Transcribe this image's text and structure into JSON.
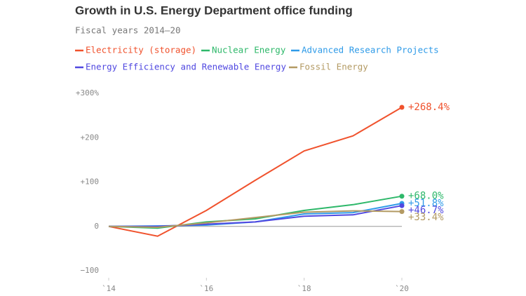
{
  "chart_data": {
    "type": "line",
    "title": "Growth in U.S. Energy Department office funding",
    "subtitle": "Fiscal years 2014–20",
    "x": [
      2014,
      2015,
      2016,
      2017,
      2018,
      2019,
      2020
    ],
    "xlim": [
      2014,
      2020
    ],
    "xticks": [
      {
        "value": 2014,
        "label": "`14"
      },
      {
        "value": 2016,
        "label": "`16"
      },
      {
        "value": 2018,
        "label": "`18"
      },
      {
        "value": 2020,
        "label": "`20"
      }
    ],
    "ylim": [
      -100,
      300
    ],
    "yticks": [
      {
        "value": 300,
        "label": "+300%"
      },
      {
        "value": 200,
        "label": "+200"
      },
      {
        "value": 100,
        "label": "+100"
      },
      0,
      {
        "value": -100,
        "label": "−100"
      }
    ],
    "series": [
      {
        "name": "Electricity (storage)",
        "color": "#f0522d",
        "values": [
          0,
          -22,
          36,
          104,
          170,
          204,
          268.4
        ],
        "value_labels": [
          null,
          null,
          null,
          null,
          null,
          null,
          "+268.4%"
        ]
      },
      {
        "name": "Nuclear Energy",
        "color": "#2eb86a",
        "values": [
          0,
          -4,
          10,
          17,
          36,
          49,
          68.0
        ],
        "value_labels": [
          null,
          null,
          null,
          null,
          null,
          null,
          "+68.0%"
        ]
      },
      {
        "name": "Advanced Research Projects",
        "color": "#2f9be8",
        "values": [
          0,
          1,
          3,
          10,
          28,
          31,
          51.8
        ],
        "value_labels": [
          null,
          null,
          null,
          null,
          null,
          null,
          "+51.8%"
        ]
      },
      {
        "name": "Energy Efficiency and Renewable Energy",
        "color": "#5048e0",
        "values": [
          0,
          0,
          5,
          10,
          23,
          26,
          46.7
        ],
        "value_labels": [
          null,
          null,
          null,
          null,
          null,
          null,
          "+46.7%"
        ]
      },
      {
        "name": "Fossil Energy",
        "color": "#b39a63",
        "values": [
          0,
          -2,
          8,
          20,
          32,
          35,
          33.4
        ],
        "value_labels": [
          null,
          null,
          null,
          null,
          null,
          null,
          "+33.4%"
        ]
      }
    ]
  }
}
